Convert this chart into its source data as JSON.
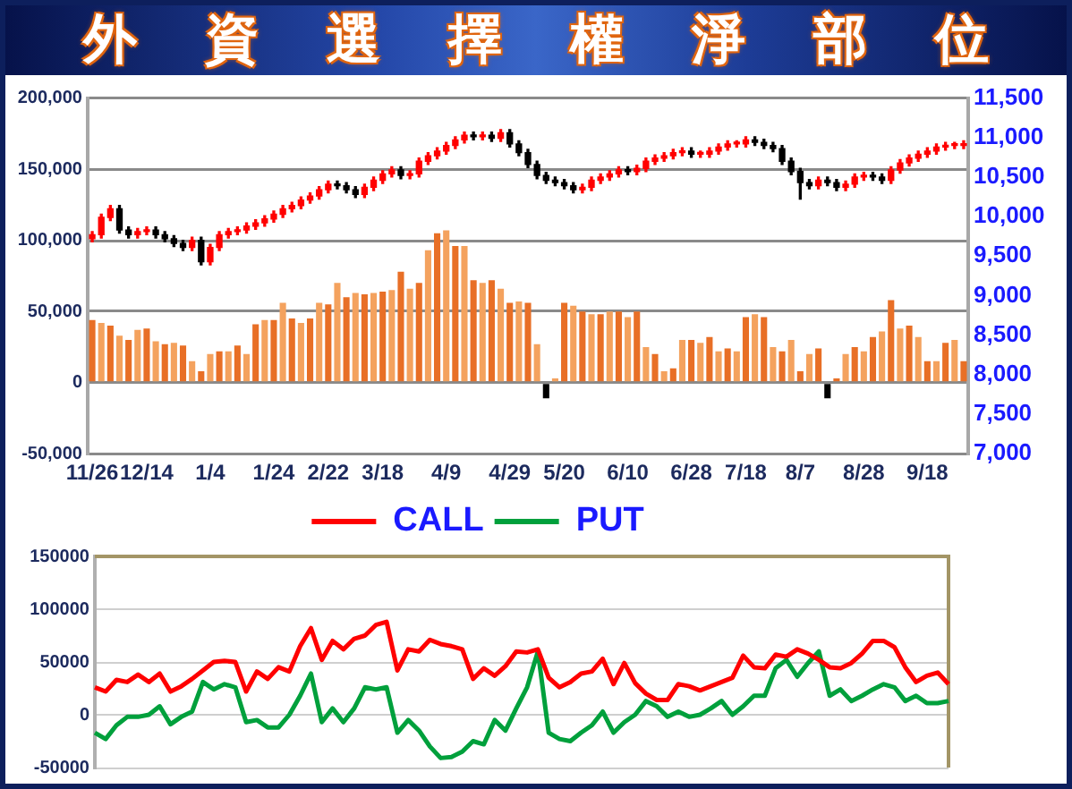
{
  "chart_data": [
    {
      "type": "bar",
      "title": "外資選擇權淨部位",
      "categories": [
        "11/26",
        null,
        null,
        null,
        null,
        null,
        "12/14",
        null,
        null,
        null,
        null,
        null,
        null,
        "1/4",
        null,
        null,
        null,
        null,
        null,
        null,
        "1/24",
        null,
        null,
        null,
        null,
        null,
        "2/22",
        null,
        null,
        null,
        null,
        null,
        "3/18",
        null,
        null,
        null,
        null,
        null,
        null,
        "4/9",
        null,
        null,
        null,
        null,
        null,
        null,
        "4/29",
        null,
        null,
        null,
        null,
        null,
        "5/20",
        null,
        null,
        null,
        null,
        null,
        null,
        "6/10",
        null,
        null,
        null,
        null,
        null,
        null,
        "6/28",
        null,
        null,
        null,
        null,
        null,
        "7/18",
        null,
        null,
        null,
        null,
        null,
        "8/7",
        null,
        null,
        null,
        null,
        null,
        null,
        "8/28",
        null,
        null,
        null,
        null,
        null,
        null,
        "9/18",
        null,
        null,
        null,
        null
      ],
      "series": [
        {
          "type": "bar",
          "values": [
            44000,
            42000,
            40000,
            33000,
            30000,
            37000,
            38000,
            29000,
            27000,
            28000,
            26000,
            15000,
            8000,
            20000,
            22000,
            22000,
            26000,
            20000,
            41000,
            44000,
            44000,
            56000,
            45000,
            42000,
            45000,
            56000,
            55000,
            70000,
            60000,
            63000,
            62000,
            63000,
            64000,
            65000,
            78000,
            66000,
            70000,
            93000,
            105000,
            107000,
            96000,
            96000,
            72000,
            70000,
            72000,
            66000,
            56000,
            57000,
            56000,
            27000,
            -11000,
            3000,
            56000,
            54000,
            50000,
            48000,
            48000,
            50000,
            50000,
            46000,
            50000,
            25000,
            20000,
            8000,
            10000,
            30000,
            30000,
            28000,
            32000,
            22000,
            24000,
            22000,
            46000,
            48000,
            46000,
            25000,
            22000,
            30000,
            8000,
            20000,
            24000,
            -11000,
            3000,
            20000,
            25000,
            22000,
            32000,
            36000,
            58000,
            38000,
            40000,
            32000,
            15000,
            15000,
            28000,
            30000,
            15000
          ],
          "colors": [
            "#e86f26",
            "#f4a25e",
            "#e86f26",
            "#f4a25e",
            "#e86f26",
            "#f4a25e",
            "#e86f26",
            "#f4a25e",
            "#e86f26",
            "#f4a25e",
            "#e86f26",
            "#f4a25e",
            "#e86f26",
            "#f4a25e",
            "#e86f26",
            "#f4a25e",
            "#e86f26",
            "#f4a25e",
            "#e86f26",
            "#f4a25e",
            "#e86f26",
            "#f4a25e",
            "#e86f26",
            "#f4a25e",
            "#e86f26",
            "#f4a25e",
            "#e86f26",
            "#f4a25e",
            "#e86f26",
            "#f4a25e",
            "#e86f26",
            "#f4a25e",
            "#e86f26",
            "#f4a25e",
            "#e86f26",
            "#f4a25e",
            "#e86f26",
            "#f4a25e",
            "#e86f26",
            "#f4a25e",
            "#e86f26",
            "#f4a25e",
            "#e86f26",
            "#f4a25e",
            "#e86f26",
            "#f4a25e",
            "#e86f26",
            "#f4a25e",
            "#e86f26",
            "#f4a25e",
            "#000000",
            "#f4a25e",
            "#e86f26",
            "#f4a25e",
            "#e86f26",
            "#f4a25e",
            "#e86f26",
            "#f4a25e",
            "#e86f26",
            "#f4a25e",
            "#e86f26",
            "#f4a25e",
            "#e86f26",
            "#f4a25e",
            "#e86f26",
            "#f4a25e",
            "#e86f26",
            "#f4a25e",
            "#e86f26",
            "#f4a25e",
            "#e86f26",
            "#f4a25e",
            "#e86f26",
            "#f4a25e",
            "#e86f26",
            "#f4a25e",
            "#e86f26",
            "#f4a25e",
            "#e86f26",
            "#f4a25e",
            "#e86f26",
            "#000000",
            "#e86f26",
            "#f4a25e",
            "#e86f26",
            "#f4a25e",
            "#e86f26",
            "#f4a25e",
            "#e86f26",
            "#f4a25e",
            "#e86f26",
            "#f4a25e",
            "#e86f26",
            "#f4a25e",
            "#e86f26",
            "#f4a25e",
            "#e86f26"
          ]
        },
        {
          "type": "candlestick",
          "axis": "y2",
          "ohlc": [
            [
              9720,
              9810,
              9680,
              9770
            ],
            [
              9770,
              10030,
              9730,
              9990
            ],
            [
              9990,
              10140,
              9950,
              10100
            ],
            [
              10100,
              10140,
              9790,
              9830
            ],
            [
              9830,
              9870,
              9730,
              9770
            ],
            [
              9770,
              9850,
              9730,
              9810
            ],
            [
              9810,
              9870,
              9770,
              9830
            ],
            [
              9830,
              9870,
              9730,
              9770
            ],
            [
              9770,
              9810,
              9680,
              9720
            ],
            [
              9720,
              9760,
              9620,
              9660
            ],
            [
              9660,
              9700,
              9570,
              9610
            ],
            [
              9610,
              9740,
              9570,
              9700
            ],
            [
              9700,
              9740,
              9390,
              9430
            ],
            [
              9430,
              9650,
              9390,
              9610
            ],
            [
              9610,
              9810,
              9570,
              9770
            ],
            [
              9770,
              9850,
              9730,
              9810
            ],
            [
              9810,
              9870,
              9770,
              9830
            ],
            [
              9830,
              9920,
              9790,
              9880
            ],
            [
              9880,
              9960,
              9840,
              9920
            ],
            [
              9920,
              10010,
              9880,
              9970
            ],
            [
              9970,
              10070,
              9930,
              10030
            ],
            [
              10030,
              10140,
              9990,
              10100
            ],
            [
              10100,
              10180,
              10060,
              10140
            ],
            [
              10140,
              10250,
              10100,
              10210
            ],
            [
              10210,
              10300,
              10170,
              10260
            ],
            [
              10260,
              10380,
              10220,
              10340
            ],
            [
              10340,
              10450,
              10300,
              10410
            ],
            [
              10410,
              10450,
              10350,
              10390
            ],
            [
              10390,
              10430,
              10300,
              10340
            ],
            [
              10340,
              10380,
              10240,
              10280
            ],
            [
              10280,
              10410,
              10240,
              10370
            ],
            [
              10370,
              10500,
              10330,
              10460
            ],
            [
              10460,
              10580,
              10420,
              10540
            ],
            [
              10540,
              10630,
              10500,
              10590
            ],
            [
              10590,
              10630,
              10480,
              10520
            ],
            [
              10520,
              10580,
              10480,
              10540
            ],
            [
              10540,
              10740,
              10500,
              10700
            ],
            [
              10700,
              10810,
              10660,
              10770
            ],
            [
              10770,
              10870,
              10730,
              10830
            ],
            [
              10830,
              10940,
              10790,
              10900
            ],
            [
              10900,
              11010,
              10860,
              10970
            ],
            [
              10970,
              11070,
              10930,
              11030
            ],
            [
              11030,
              11070,
              10970,
              11010
            ],
            [
              11010,
              11070,
              10970,
              11030
            ],
            [
              11030,
              11070,
              10950,
              10990
            ],
            [
              10990,
              11100,
              10950,
              11060
            ],
            [
              11060,
              11100,
              10880,
              10920
            ],
            [
              10920,
              10960,
              10770,
              10810
            ],
            [
              10810,
              10850,
              10620,
              10660
            ],
            [
              10660,
              10700,
              10480,
              10520
            ],
            [
              10520,
              10560,
              10420,
              10460
            ],
            [
              10460,
              10500,
              10390,
              10430
            ],
            [
              10430,
              10470,
              10350,
              10390
            ],
            [
              10390,
              10430,
              10300,
              10340
            ],
            [
              10340,
              10410,
              10300,
              10370
            ],
            [
              10370,
              10500,
              10330,
              10460
            ],
            [
              10460,
              10540,
              10420,
              10500
            ],
            [
              10500,
              10580,
              10460,
              10540
            ],
            [
              10540,
              10630,
              10500,
              10590
            ],
            [
              10590,
              10630,
              10530,
              10570
            ],
            [
              10570,
              10650,
              10530,
              10610
            ],
            [
              10610,
              10740,
              10570,
              10700
            ],
            [
              10700,
              10780,
              10660,
              10740
            ],
            [
              10740,
              10810,
              10700,
              10770
            ],
            [
              10770,
              10850,
              10730,
              10810
            ],
            [
              10810,
              10870,
              10770,
              10830
            ],
            [
              10830,
              10870,
              10750,
              10790
            ],
            [
              10790,
              10830,
              10750,
              10790
            ],
            [
              10790,
              10870,
              10750,
              10830
            ],
            [
              10830,
              10920,
              10790,
              10880
            ],
            [
              10880,
              10960,
              10840,
              10920
            ],
            [
              10920,
              10960,
              10880,
              10920
            ],
            [
              10920,
              11010,
              10880,
              10970
            ],
            [
              10970,
              11010,
              10900,
              10940
            ],
            [
              10940,
              10980,
              10860,
              10900
            ],
            [
              10900,
              10940,
              10820,
              10860
            ],
            [
              10860,
              10900,
              10660,
              10700
            ],
            [
              10700,
              10740,
              10530,
              10570
            ],
            [
              10570,
              10610,
              10220,
              10430
            ],
            [
              10430,
              10470,
              10350,
              10390
            ],
            [
              10390,
              10500,
              10350,
              10460
            ],
            [
              10460,
              10500,
              10390,
              10430
            ],
            [
              10430,
              10470,
              10330,
              10370
            ],
            [
              10370,
              10450,
              10330,
              10410
            ],
            [
              10410,
              10540,
              10370,
              10500
            ],
            [
              10500,
              10560,
              10460,
              10520
            ],
            [
              10520,
              10560,
              10460,
              10500
            ],
            [
              10500,
              10540,
              10420,
              10460
            ],
            [
              10460,
              10630,
              10420,
              10590
            ],
            [
              10590,
              10720,
              10550,
              10680
            ],
            [
              10680,
              10780,
              10640,
              10740
            ],
            [
              10740,
              10830,
              10700,
              10790
            ],
            [
              10790,
              10870,
              10750,
              10830
            ],
            [
              10830,
              10920,
              10790,
              10880
            ],
            [
              10880,
              10940,
              10840,
              10900
            ],
            [
              10900,
              10940,
              10860,
              10900
            ],
            [
              10900,
              10960,
              10860,
              10920
            ]
          ],
          "colors": [
            "#ff0000",
            "#ff0000",
            "#ff0000",
            "#000000",
            "#000000",
            "#ff0000",
            "#ff0000",
            "#000000",
            "#000000",
            "#000000",
            "#000000",
            "#ff0000",
            "#000000",
            "#ff0000",
            "#ff0000",
            "#ff0000",
            "#ff0000",
            "#ff0000",
            "#ff0000",
            "#ff0000",
            "#ff0000",
            "#ff0000",
            "#ff0000",
            "#ff0000",
            "#ff0000",
            "#ff0000",
            "#ff0000",
            "#000000",
            "#000000",
            "#000000",
            "#ff0000",
            "#ff0000",
            "#ff0000",
            "#ff0000",
            "#000000",
            "#ff0000",
            "#ff0000",
            "#ff0000",
            "#ff0000",
            "#ff0000",
            "#ff0000",
            "#ff0000",
            "#000000",
            "#ff0000",
            "#000000",
            "#ff0000",
            "#000000",
            "#000000",
            "#000000",
            "#000000",
            "#000000",
            "#000000",
            "#000000",
            "#000000",
            "#ff0000",
            "#ff0000",
            "#ff0000",
            "#ff0000",
            "#ff0000",
            "#000000",
            "#ff0000",
            "#ff0000",
            "#ff0000",
            "#ff0000",
            "#ff0000",
            "#ff0000",
            "#000000",
            "#ff0000",
            "#ff0000",
            "#ff0000",
            "#ff0000",
            "#ff0000",
            "#ff0000",
            "#000000",
            "#000000",
            "#000000",
            "#000000",
            "#000000",
            "#000000",
            "#000000",
            "#ff0000",
            "#000000",
            "#000000",
            "#ff0000",
            "#ff0000",
            "#ff0000",
            "#000000",
            "#000000",
            "#ff0000",
            "#ff0000",
            "#ff0000",
            "#ff0000",
            "#ff0000",
            "#ff0000",
            "#ff0000",
            "#ff0000",
            "#ff0000"
          ]
        }
      ],
      "ylim": [
        -50000,
        200000
      ],
      "yticks": [
        {
          "value": -50000,
          "label": "-50,000"
        },
        {
          "value": 0,
          "label": "0"
        },
        {
          "value": 50000,
          "label": "50,000"
        },
        {
          "value": 100000,
          "label": "100,000"
        },
        {
          "value": 150000,
          "label": "150,000"
        },
        {
          "value": 200000,
          "label": "200,000"
        }
      ],
      "y2lim": [
        7000,
        11500
      ],
      "y2ticks": [
        {
          "value": 7000,
          "label": "7,000"
        },
        {
          "value": 7500,
          "label": "7,500"
        },
        {
          "value": 8000,
          "label": "8,000"
        },
        {
          "value": 8500,
          "label": "8,500"
        },
        {
          "value": 9000,
          "label": "9,000"
        },
        {
          "value": 9500,
          "label": "9,500"
        },
        {
          "value": 10000,
          "label": "10,000"
        },
        {
          "value": 10500,
          "label": "10,500"
        },
        {
          "value": 11000,
          "label": "11,000"
        },
        {
          "value": 11500,
          "label": "11,500"
        }
      ],
      "grid": "y"
    },
    {
      "type": "line",
      "categories": [
        null,
        null,
        null,
        null,
        null,
        null,
        null,
        null,
        null,
        null,
        null,
        null,
        null,
        null,
        null,
        null,
        null,
        null,
        null,
        null,
        null,
        null,
        null,
        null,
        null,
        null,
        null,
        null,
        null,
        null,
        null,
        null,
        null,
        null,
        null,
        null,
        null,
        null,
        null,
        null,
        null,
        null,
        null,
        null,
        null,
        null,
        null,
        null,
        null,
        null,
        null,
        null,
        null,
        null,
        null,
        null,
        null,
        null,
        null,
        null,
        null,
        null,
        null,
        null,
        null,
        null,
        null,
        null,
        null,
        null,
        null,
        null,
        null,
        null,
        null,
        null,
        null,
        null,
        null,
        null
      ],
      "series": [
        {
          "name": "CALL",
          "color": "#ff0000",
          "values": [
            26000,
            22000,
            33000,
            31000,
            38000,
            31000,
            39000,
            22000,
            27000,
            34000,
            42000,
            50000,
            51000,
            50000,
            22000,
            41000,
            34000,
            45000,
            41000,
            65000,
            82000,
            52000,
            70000,
            62000,
            72000,
            75000,
            85000,
            88000,
            42000,
            62000,
            60000,
            71000,
            67000,
            65000,
            62000,
            34000,
            44000,
            37000,
            46000,
            60000,
            59000,
            62000,
            35000,
            26000,
            31000,
            39000,
            41000,
            53000,
            29000,
            49000,
            30000,
            20000,
            14000,
            14000,
            29000,
            27000,
            23000,
            27000,
            31000,
            35000,
            56000,
            45000,
            44000,
            57000,
            55000,
            62000,
            58000,
            52000,
            45000,
            44000,
            49000,
            58000,
            70000,
            70000,
            64000,
            45000,
            31000,
            37000,
            40000,
            29000
          ]
        },
        {
          "name": "PUT",
          "color": "#00a03c",
          "values": [
            -17000,
            -23000,
            -10000,
            -2000,
            -2000,
            0,
            8000,
            -9000,
            -2000,
            3000,
            31000,
            24000,
            29000,
            26000,
            -7000,
            -5000,
            -12000,
            -12000,
            0,
            18000,
            39000,
            -7000,
            6000,
            -7000,
            6000,
            26000,
            24000,
            26000,
            -17000,
            -5000,
            -15000,
            -30000,
            -41000,
            -40000,
            -35000,
            -25000,
            -28000,
            -5000,
            -15000,
            6000,
            26000,
            60000,
            -17000,
            -23000,
            -25000,
            -17000,
            -10000,
            3000,
            -17000,
            -7000,
            0,
            13000,
            8000,
            -2000,
            3000,
            -2000,
            0,
            6000,
            13000,
            0,
            8000,
            18000,
            18000,
            44000,
            52000,
            36000,
            49000,
            60000,
            18000,
            24000,
            13000,
            18000,
            24000,
            29000,
            26000,
            13000,
            18000,
            11000,
            11000,
            13000
          ]
        }
      ],
      "ylim": [
        -50000,
        150000
      ],
      "yticks": [
        -50000,
        0,
        50000,
        100000,
        150000
      ],
      "grid": "y",
      "legend": "top"
    }
  ]
}
